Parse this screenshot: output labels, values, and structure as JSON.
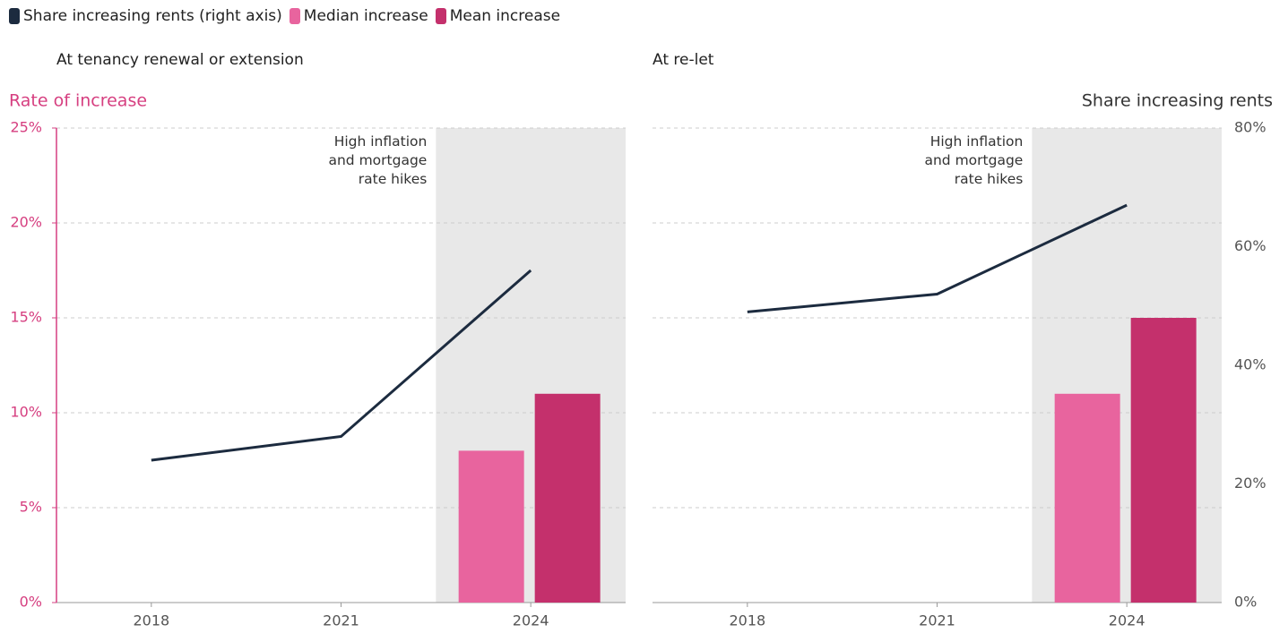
{
  "chart_data": {
    "type": "bar",
    "series": [
      {
        "name": "Share increasing rents (right axis)",
        "color": "#1c2b3f",
        "type": "line",
        "axis": "y2"
      },
      {
        "name": "Median increase",
        "color": "#e8649e"
      },
      {
        "name": "Mean increase",
        "color": "#c4306c"
      }
    ],
    "ylabel": "Rate of increase",
    "y2label": "Share increasing rents",
    "categories": [
      "2018",
      "2021",
      "2024"
    ],
    "ylim": [
      0,
      25
    ],
    "yticks": [
      {
        "value": 0,
        "label": "0%"
      },
      {
        "value": 5,
        "label": "5%"
      },
      {
        "value": 10,
        "label": "10%"
      },
      {
        "value": 15,
        "label": "15%"
      },
      {
        "value": 20,
        "label": "20%"
      },
      {
        "value": 25,
        "label": "25%"
      }
    ],
    "y2lim": [
      0,
      80
    ],
    "y2ticks": [
      {
        "value": 0,
        "label": "0%"
      },
      {
        "value": 20,
        "label": "20%"
      },
      {
        "value": 40,
        "label": "40%"
      },
      {
        "value": 60,
        "label": "60%"
      },
      {
        "value": 80,
        "label": "80%"
      }
    ],
    "grid": true,
    "panels": [
      {
        "title": "At tenancy renewal or extension",
        "annotation": "High inflation and mortgage rate hikes",
        "series": [
          {
            "values": [
              24,
              28,
              56
            ]
          },
          {
            "values": [
              null,
              null,
              8
            ]
          },
          {
            "values": [
              null,
              null,
              11
            ]
          }
        ]
      },
      {
        "title": "At re-let",
        "annotation": "High inflation and mortgage rate hikes",
        "series": [
          {
            "values": [
              49,
              52,
              67
            ]
          },
          {
            "values": [
              null,
              null,
              11
            ]
          },
          {
            "values": [
              null,
              null,
              15
            ]
          }
        ]
      }
    ]
  }
}
